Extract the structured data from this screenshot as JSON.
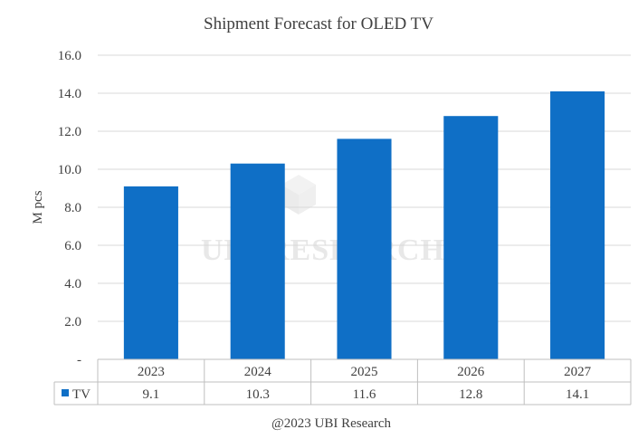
{
  "chart_data": {
    "type": "bar",
    "title": "Shipment Forecast for OLED TV",
    "ylabel": "M pcs",
    "xlabel": "",
    "categories": [
      "2023",
      "2024",
      "2025",
      "2026",
      "2027"
    ],
    "series": [
      {
        "name": "TV",
        "values": [
          9.1,
          10.3,
          11.6,
          12.8,
          14.1
        ],
        "color": "#0F6FC6"
      }
    ],
    "yticks": [
      "-",
      "2.0",
      "4.0",
      "6.0",
      "8.0",
      "10.0",
      "12.0",
      "14.0",
      "16.0"
    ],
    "ylim": [
      0,
      16
    ],
    "grid": true,
    "data_table": true,
    "watermark": "UBI RESEARCH",
    "footer": "@2023 UBI Research"
  }
}
